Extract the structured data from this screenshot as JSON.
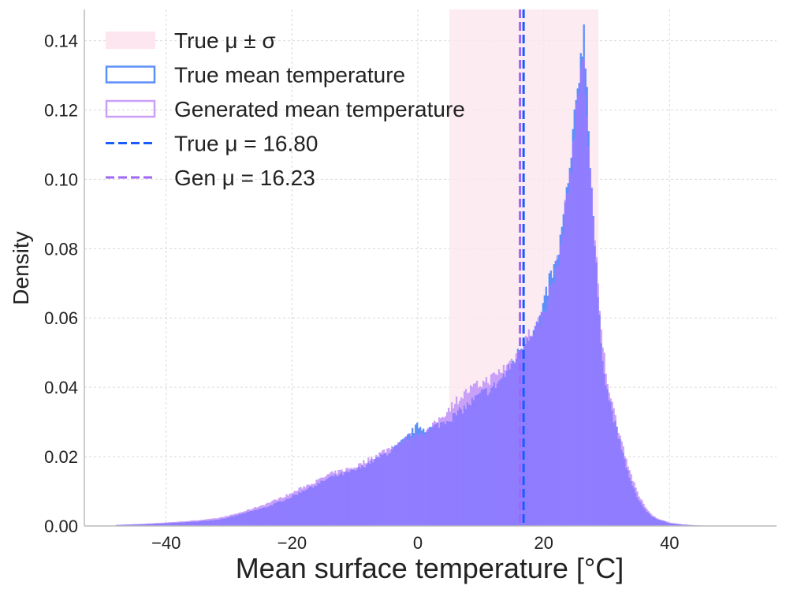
{
  "chart_data": {
    "type": "histogram",
    "xlabel": "Mean surface temperature [°C]",
    "ylabel": "Density",
    "xlim": [
      -53,
      57
    ],
    "ylim": [
      0,
      0.149
    ],
    "xticks": [
      -40,
      -20,
      0,
      20,
      40
    ],
    "xtick_labels": [
      "−40",
      "−20",
      "0",
      "20",
      "40"
    ],
    "yticks": [
      0.0,
      0.02,
      0.04,
      0.06,
      0.08,
      0.1,
      0.12,
      0.14
    ],
    "ytick_labels": [
      "0.00",
      "0.02",
      "0.04",
      "0.06",
      "0.08",
      "0.10",
      "0.12",
      "0.14"
    ],
    "grid": true,
    "legend_position": "upper-left",
    "band": {
      "name": "True μ ± σ",
      "x_start": 5.0,
      "x_end": 28.7,
      "color": "#fde6ef"
    },
    "vlines": [
      {
        "name": "True μ = 16.80",
        "x": 16.8,
        "color": "#1a5cff",
        "style": "dashed"
      },
      {
        "name": "Gen μ = 16.23",
        "x": 16.23,
        "color": "#a066f5",
        "style": "dashed"
      }
    ],
    "series": [
      {
        "name": "True mean temperature",
        "color": "#5b8ff9",
        "x": [
          -48,
          -44,
          -40,
          -36,
          -32,
          -30,
          -28,
          -26,
          -24,
          -22,
          -20,
          -18,
          -16,
          -14,
          -12,
          -10,
          -8,
          -6,
          -4,
          -2,
          0,
          1,
          2,
          3,
          4,
          6,
          8,
          10,
          12,
          14,
          16,
          17,
          18,
          19,
          20,
          21,
          22,
          23,
          24,
          25,
          25.5,
          26,
          26.5,
          27,
          28,
          29,
          30,
          31,
          32,
          33,
          34,
          35,
          36,
          37,
          38,
          40,
          42,
          44,
          46,
          48,
          50,
          52
        ],
        "y": [
          0.0003,
          0.0005,
          0.0008,
          0.0012,
          0.0018,
          0.0025,
          0.0035,
          0.0045,
          0.0055,
          0.007,
          0.0085,
          0.0105,
          0.012,
          0.014,
          0.015,
          0.016,
          0.018,
          0.02,
          0.022,
          0.025,
          0.029,
          0.028,
          0.028,
          0.029,
          0.03,
          0.032,
          0.035,
          0.038,
          0.04,
          0.044,
          0.05,
          0.054,
          0.056,
          0.058,
          0.063,
          0.072,
          0.075,
          0.087,
          0.1,
          0.118,
          0.128,
          0.14,
          0.142,
          0.12,
          0.085,
          0.055,
          0.04,
          0.032,
          0.025,
          0.018,
          0.012,
          0.008,
          0.005,
          0.003,
          0.002,
          0.0008,
          0.0004,
          0.0002,
          0.0001,
          0.0001,
          5e-05,
          0.0
        ]
      },
      {
        "name": "Generated mean temperature",
        "color": "#c9a0f7",
        "x": [
          -48,
          -44,
          -40,
          -36,
          -32,
          -30,
          -28,
          -26,
          -24,
          -22,
          -20,
          -18,
          -16,
          -14,
          -12,
          -10,
          -8,
          -6,
          -4,
          -2,
          0,
          1,
          2,
          3,
          4,
          6,
          8,
          10,
          12,
          14,
          16,
          17,
          18,
          19,
          20,
          21,
          22,
          23,
          24,
          25,
          25.5,
          26,
          26.5,
          27,
          28,
          29,
          30,
          31,
          32,
          33,
          34,
          35,
          36,
          37,
          38,
          40,
          42,
          44,
          46,
          48,
          50,
          52
        ],
        "y": [
          0.0003,
          0.0006,
          0.001,
          0.0015,
          0.0022,
          0.003,
          0.004,
          0.0052,
          0.0065,
          0.008,
          0.0095,
          0.0115,
          0.013,
          0.015,
          0.016,
          0.017,
          0.019,
          0.021,
          0.023,
          0.025,
          0.027,
          0.027,
          0.028,
          0.03,
          0.032,
          0.036,
          0.039,
          0.041,
          0.043,
          0.046,
          0.05,
          0.054,
          0.056,
          0.058,
          0.062,
          0.068,
          0.074,
          0.085,
          0.1,
          0.115,
          0.125,
          0.135,
          0.13,
          0.115,
          0.085,
          0.058,
          0.043,
          0.034,
          0.027,
          0.02,
          0.014,
          0.009,
          0.006,
          0.0035,
          0.0022,
          0.001,
          0.0005,
          0.0002,
          0.0001,
          0.0001,
          5e-05,
          0.0
        ]
      }
    ],
    "legend": [
      {
        "label": "True μ ± σ",
        "kind": "patch",
        "color": "#fde6ef"
      },
      {
        "label": "True mean temperature",
        "kind": "outline",
        "color": "#5b8ff9"
      },
      {
        "label": "Generated mean temperature",
        "kind": "outline",
        "color": "#c9a0f7"
      },
      {
        "label": "True μ = 16.80",
        "kind": "dash",
        "color": "#1a5cff"
      },
      {
        "label": "Gen μ = 16.23",
        "kind": "dash",
        "color": "#a066f5"
      }
    ],
    "overlap_color": "#8f7cff"
  }
}
